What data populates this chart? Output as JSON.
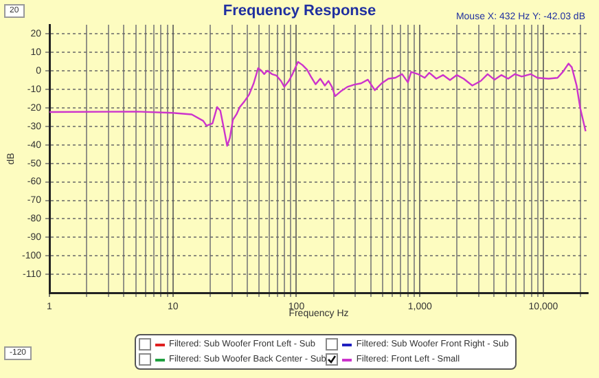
{
  "chart_data": {
    "type": "line",
    "title": "Frequency Response",
    "xlabel": "Frequency Hz",
    "ylabel": "dB",
    "annotations": [
      "Mouse X: 432 Hz   Y: -42.03 dB",
      "20",
      "-120"
    ],
    "log": "x",
    "grid": true,
    "legend": "bottom",
    "marker": "none",
    "line_style": "solid",
    "xlim": [
      1,
      23000
    ],
    "xticks": [
      1,
      {
        "value": 2,
        "label": null
      },
      {
        "value": 3,
        "label": null
      },
      {
        "value": 4,
        "label": null
      },
      {
        "value": 5,
        "label": null
      },
      {
        "value": 6,
        "label": null
      },
      {
        "value": 7,
        "label": null
      },
      {
        "value": 8,
        "label": null
      },
      {
        "value": 9,
        "label": null
      },
      10,
      {
        "value": 20,
        "label": null
      },
      {
        "value": 30,
        "label": null
      },
      {
        "value": 40,
        "label": null
      },
      {
        "value": 50,
        "label": null
      },
      {
        "value": 60,
        "label": null
      },
      {
        "value": 70,
        "label": null
      },
      {
        "value": 80,
        "label": null
      },
      {
        "value": 90,
        "label": null
      },
      100,
      {
        "value": 200,
        "label": null
      },
      {
        "value": 300,
        "label": null
      },
      {
        "value": 400,
        "label": null
      },
      {
        "value": 500,
        "label": null
      },
      {
        "value": 600,
        "label": null
      },
      {
        "value": 700,
        "label": null
      },
      {
        "value": 800,
        "label": null
      },
      {
        "value": 900,
        "label": null
      },
      {
        "value": 1000,
        "label": "1,000"
      },
      {
        "value": 2000,
        "label": null
      },
      {
        "value": 3000,
        "label": null
      },
      {
        "value": 4000,
        "label": null
      },
      {
        "value": 5000,
        "label": null
      },
      {
        "value": 6000,
        "label": null
      },
      {
        "value": 7000,
        "label": null
      },
      {
        "value": 8000,
        "label": null
      },
      {
        "value": 9000,
        "label": null
      },
      {
        "value": 10000,
        "label": "10,000"
      },
      {
        "value": 20000,
        "label": null
      }
    ],
    "ylim": [
      -120,
      25
    ],
    "yticks": [
      -110,
      -100,
      -90,
      -80,
      -70,
      -60,
      -50,
      -40,
      -30,
      -20,
      -10,
      0,
      10,
      20
    ],
    "series": [
      {
        "name": "Filtered: Sub Woofer Front Left - Sub",
        "color": "#e02020"
      },
      {
        "name": "Filtered: Sub Woofer Front Right - Sub",
        "color": "#2020c0"
      },
      {
        "name": "Filtered: Sub Woofer Back Center - Sub",
        "color": "#20a040"
      },
      {
        "name": "Filtered: Front Left - Small",
        "color": "#cc33cc",
        "x": [
          1,
          5.1,
          10,
          14.2,
          17.6,
          18.7,
          20.9,
          22.8,
          24.2,
          25.9,
          27.5,
          28.9,
          30.6,
          32.7,
          34.8,
          37.9,
          41.4,
          45.1,
          49,
          52,
          54.8,
          58.2,
          63.4,
          68.9,
          75,
          79.8,
          86.8,
          93,
          103,
          112,
          122,
          131,
          143,
          156,
          170,
          182,
          194,
          206,
          228,
          259,
          294,
          334,
          379,
          432,
          490,
          556,
          632,
          718,
          800,
          850,
          964,
          1095,
          1192,
          1358,
          1543,
          1753,
          1990,
          2261,
          2660,
          3114,
          3538,
          4018,
          4565,
          5186,
          5891,
          6691,
          7894,
          8969,
          11026,
          13024,
          14382,
          16000,
          17000,
          18600,
          19900,
          22000
        ],
        "values": [
          -22.2,
          -22,
          -22.7,
          -23.5,
          -27,
          -29.6,
          -28.4,
          -19.5,
          -21.5,
          -31.4,
          -40.5,
          -36.3,
          -26.4,
          -23.5,
          -19.5,
          -16.5,
          -12.8,
          -6.7,
          1.5,
          0.2,
          -1.7,
          0.2,
          -1.7,
          -2.5,
          -5.4,
          -8.6,
          -5.4,
          -1.7,
          4.9,
          3.2,
          0.7,
          -3,
          -7.2,
          -4.2,
          -7.9,
          -5.4,
          -8.6,
          -13.6,
          -11.1,
          -8.6,
          -7.4,
          -6.7,
          -4.7,
          -10.4,
          -6.7,
          -4.2,
          -3.7,
          -1.7,
          -6.2,
          -0.5,
          -1.7,
          -3.7,
          -1,
          -4.2,
          -2.2,
          -4.9,
          -2.2,
          -4.2,
          -7.9,
          -5.4,
          -1.7,
          -4.7,
          -2.2,
          -4.2,
          -1.7,
          -3,
          -1.7,
          -3.7,
          -4.2,
          -3.7,
          -0.5,
          4,
          2,
          -7.9,
          -20.2,
          -32.6
        ]
      }
    ]
  }
}
